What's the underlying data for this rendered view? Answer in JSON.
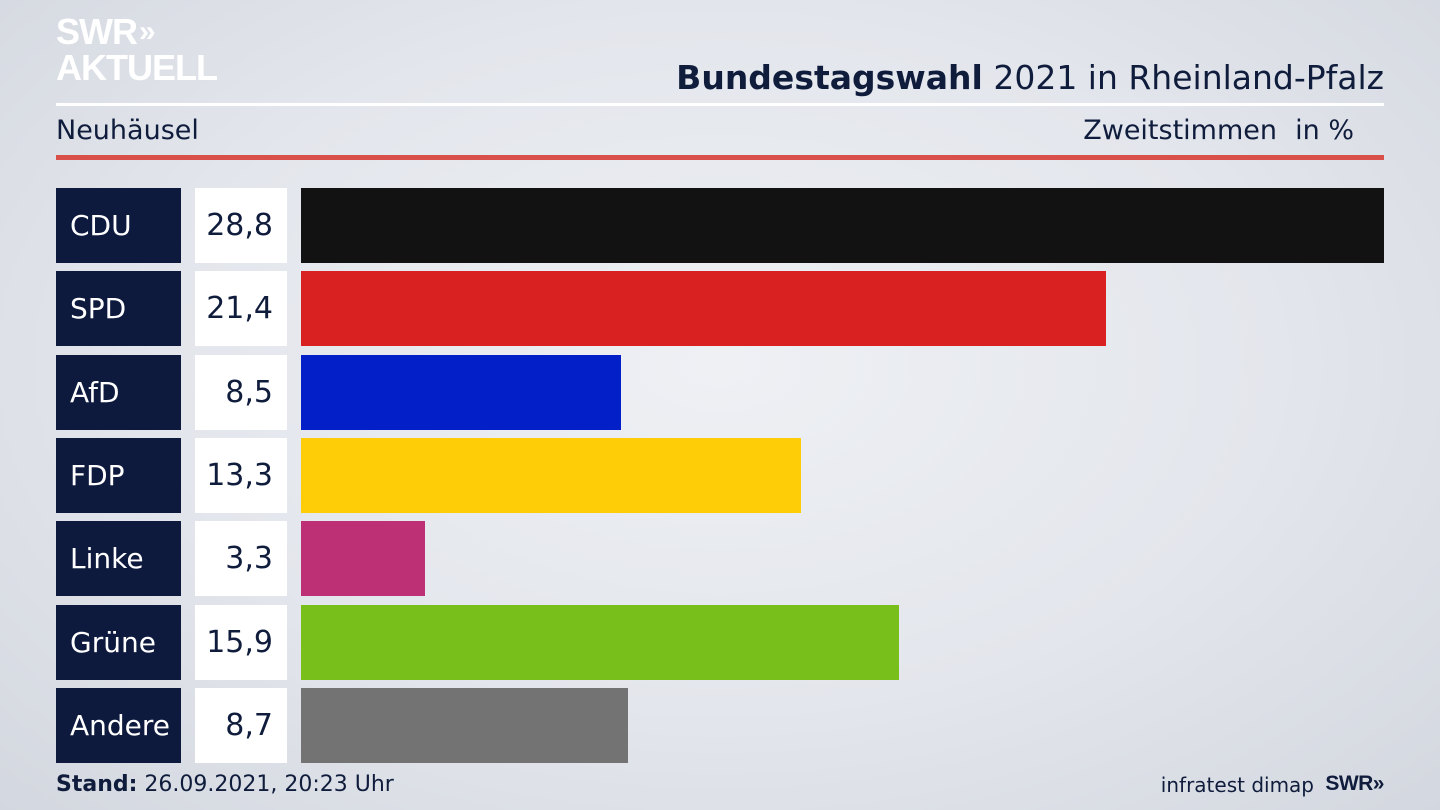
{
  "brand": {
    "line1": "SWR",
    "line1_arrows": "»",
    "line2": "AKTUELL"
  },
  "header": {
    "title_bold": "Bundestagswahl",
    "title_rest": "2021 in Rheinland-Pfalz",
    "region": "Neuhäusel",
    "metric": "Zweitstimmen",
    "unit": "in %"
  },
  "footer": {
    "stand_label": "Stand:",
    "stand_value": "26.09.2021, 20:23 Uhr",
    "source": "infratest dimap",
    "logo": "SWR»"
  },
  "chart_data": {
    "type": "bar",
    "orientation": "horizontal",
    "categories": [
      "CDU",
      "SPD",
      "AfD",
      "FDP",
      "Linke",
      "Grüne",
      "Andere"
    ],
    "values": [
      28.8,
      21.4,
      8.5,
      13.3,
      3.3,
      15.9,
      8.7
    ],
    "value_labels": [
      "28,8",
      "21,4",
      "8,5",
      "13,3",
      "3,3",
      "15,9",
      "8,7"
    ],
    "colors": [
      "#121212",
      "#d92121",
      "#0320c8",
      "#ffcc08",
      "#be3075",
      "#78bf1c",
      "#737373"
    ],
    "xlim": [
      0,
      28.8
    ]
  }
}
